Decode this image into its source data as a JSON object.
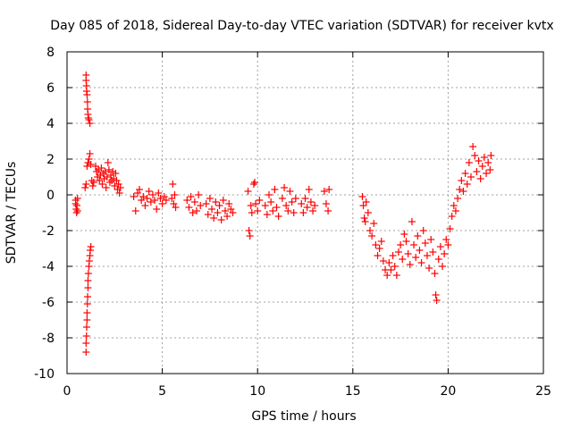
{
  "chart_data": {
    "type": "scatter",
    "title": "Day 085 of 2018, Sidereal Day-to-day VTEC variation (SDTVAR) for receiver kvtx",
    "xlabel": "GPS time / hours",
    "ylabel": "SDTVAR / TECUs",
    "xlim": [
      0,
      25
    ],
    "ylim": [
      -10,
      8
    ],
    "xticks": [
      0,
      5,
      10,
      15,
      20,
      25
    ],
    "yticks": [
      -10,
      -8,
      -6,
      -4,
      -2,
      0,
      2,
      4,
      6,
      8
    ],
    "grid": true,
    "marker": "+",
    "color": "#ff0000",
    "series": [
      {
        "name": "SDTVAR",
        "points": [
          [
            0.45,
            -0.3
          ],
          [
            0.45,
            -0.5
          ],
          [
            0.48,
            -0.8
          ],
          [
            0.5,
            -1.0
          ],
          [
            0.52,
            -0.6
          ],
          [
            0.55,
            -0.2
          ],
          [
            0.55,
            -0.9
          ],
          [
            1.0,
            6.7
          ],
          [
            1.0,
            6.4
          ],
          [
            1.02,
            6.1
          ],
          [
            1.03,
            5.8
          ],
          [
            1.05,
            5.6
          ],
          [
            1.07,
            5.2
          ],
          [
            1.08,
            4.8
          ],
          [
            1.1,
            4.5
          ],
          [
            1.12,
            4.3
          ],
          [
            1.15,
            4.2
          ],
          [
            1.2,
            4.0
          ],
          [
            1.0,
            -8.8
          ],
          [
            1.0,
            -8.3
          ],
          [
            1.02,
            -7.9
          ],
          [
            1.03,
            -7.4
          ],
          [
            1.05,
            -7.0
          ],
          [
            1.05,
            -6.6
          ],
          [
            1.07,
            -6.1
          ],
          [
            1.08,
            -5.7
          ],
          [
            1.1,
            -5.2
          ],
          [
            1.1,
            -4.8
          ],
          [
            1.12,
            -4.4
          ],
          [
            1.15,
            -4.0
          ],
          [
            1.17,
            -3.7
          ],
          [
            1.2,
            -3.4
          ],
          [
            1.22,
            -3.1
          ],
          [
            1.25,
            -2.9
          ],
          [
            0.95,
            0.4
          ],
          [
            1.0,
            0.6
          ],
          [
            1.05,
            1.6
          ],
          [
            1.1,
            1.8
          ],
          [
            1.15,
            2.0
          ],
          [
            1.2,
            2.3
          ],
          [
            1.25,
            1.7
          ],
          [
            1.3,
            0.8
          ],
          [
            1.35,
            0.5
          ],
          [
            1.4,
            0.7
          ],
          [
            1.5,
            1.6
          ],
          [
            1.55,
            1.3
          ],
          [
            1.6,
            1.0
          ],
          [
            1.65,
            1.4
          ],
          [
            1.7,
            0.8
          ],
          [
            1.75,
            1.1
          ],
          [
            1.8,
            1.5
          ],
          [
            1.85,
            0.6
          ],
          [
            1.9,
            1.2
          ],
          [
            1.95,
            0.9
          ],
          [
            2.0,
            1.3
          ],
          [
            2.05,
            0.4
          ],
          [
            2.1,
            1.0
          ],
          [
            2.15,
            1.8
          ],
          [
            2.2,
            1.4
          ],
          [
            2.25,
            0.7
          ],
          [
            2.3,
            1.1
          ],
          [
            2.35,
            0.8
          ],
          [
            2.4,
            1.3
          ],
          [
            2.45,
            0.9
          ],
          [
            2.5,
            0.5
          ],
          [
            2.55,
            1.2
          ],
          [
            2.6,
            0.8
          ],
          [
            2.65,
            0.3
          ],
          [
            2.7,
            0.6
          ],
          [
            2.75,
            0.1
          ],
          [
            2.8,
            0.4
          ],
          [
            3.5,
            -0.1
          ],
          [
            3.6,
            -0.9
          ],
          [
            3.7,
            0.1
          ],
          [
            3.8,
            0.3
          ],
          [
            3.9,
            -0.3
          ],
          [
            4.0,
            -0.1
          ],
          [
            4.1,
            -0.6
          ],
          [
            4.2,
            -0.2
          ],
          [
            4.3,
            0.2
          ],
          [
            4.4,
            -0.4
          ],
          [
            4.5,
            0.0
          ],
          [
            4.6,
            -0.3
          ],
          [
            4.7,
            -0.8
          ],
          [
            4.8,
            0.1
          ],
          [
            4.9,
            -0.2
          ],
          [
            5.0,
            -0.5
          ],
          [
            5.1,
            -0.1
          ],
          [
            5.2,
            -0.3
          ],
          [
            5.5,
            -0.2
          ],
          [
            5.55,
            0.6
          ],
          [
            5.6,
            -0.5
          ],
          [
            5.65,
            0.0
          ],
          [
            5.7,
            -0.7
          ],
          [
            6.3,
            -0.3
          ],
          [
            6.4,
            -0.7
          ],
          [
            6.5,
            -0.1
          ],
          [
            6.6,
            -1.0
          ],
          [
            6.7,
            -0.4
          ],
          [
            6.8,
            -0.9
          ],
          [
            6.9,
            0.0
          ],
          [
            7.0,
            -0.6
          ],
          [
            7.3,
            -0.5
          ],
          [
            7.4,
            -1.1
          ],
          [
            7.5,
            -0.2
          ],
          [
            7.6,
            -0.8
          ],
          [
            7.7,
            -1.3
          ],
          [
            7.8,
            -0.4
          ],
          [
            7.9,
            -1.0
          ],
          [
            8.0,
            -0.6
          ],
          [
            8.1,
            -1.4
          ],
          [
            8.2,
            -0.3
          ],
          [
            8.3,
            -0.9
          ],
          [
            8.4,
            -1.2
          ],
          [
            8.5,
            -0.5
          ],
          [
            8.6,
            -0.8
          ],
          [
            8.7,
            -1.0
          ],
          [
            9.5,
            0.2
          ],
          [
            9.55,
            -2.0
          ],
          [
            9.6,
            -2.3
          ],
          [
            9.65,
            -0.6
          ],
          [
            9.7,
            -1.0
          ],
          [
            9.8,
            0.6
          ],
          [
            9.85,
            0.7
          ],
          [
            9.9,
            -0.5
          ],
          [
            10.0,
            -0.9
          ],
          [
            10.1,
            -0.3
          ],
          [
            10.4,
            -0.6
          ],
          [
            10.5,
            -1.1
          ],
          [
            10.6,
            0.0
          ],
          [
            10.7,
            -0.4
          ],
          [
            10.8,
            -0.9
          ],
          [
            10.9,
            0.3
          ],
          [
            11.0,
            -0.7
          ],
          [
            11.1,
            -1.2
          ],
          [
            11.3,
            -0.2
          ],
          [
            11.4,
            0.4
          ],
          [
            11.5,
            -0.6
          ],
          [
            11.6,
            -0.9
          ],
          [
            11.7,
            0.2
          ],
          [
            11.8,
            -0.4
          ],
          [
            11.9,
            -1.0
          ],
          [
            12.0,
            -0.2
          ],
          [
            12.3,
            -0.5
          ],
          [
            12.4,
            -1.0
          ],
          [
            12.5,
            -0.2
          ],
          [
            12.6,
            -0.7
          ],
          [
            12.7,
            0.3
          ],
          [
            12.8,
            -0.4
          ],
          [
            12.9,
            -0.9
          ],
          [
            13.0,
            -0.6
          ],
          [
            13.5,
            0.2
          ],
          [
            13.6,
            -0.5
          ],
          [
            13.7,
            -0.9
          ],
          [
            13.75,
            0.3
          ],
          [
            15.5,
            -0.1
          ],
          [
            15.55,
            -0.6
          ],
          [
            15.6,
            -1.3
          ],
          [
            15.65,
            -1.5
          ],
          [
            15.7,
            -0.4
          ],
          [
            15.8,
            -1.0
          ],
          [
            15.9,
            -2.0
          ],
          [
            16.0,
            -2.3
          ],
          [
            16.1,
            -1.6
          ],
          [
            16.2,
            -2.8
          ],
          [
            16.3,
            -3.4
          ],
          [
            16.4,
            -3.0
          ],
          [
            16.5,
            -2.6
          ],
          [
            16.6,
            -3.7
          ],
          [
            16.7,
            -4.2
          ],
          [
            16.8,
            -4.5
          ],
          [
            16.9,
            -3.8
          ],
          [
            17.0,
            -4.2
          ],
          [
            17.1,
            -3.4
          ],
          [
            17.2,
            -4.0
          ],
          [
            17.3,
            -4.5
          ],
          [
            17.4,
            -3.2
          ],
          [
            17.5,
            -2.8
          ],
          [
            17.6,
            -3.6
          ],
          [
            17.7,
            -2.2
          ],
          [
            17.8,
            -2.6
          ],
          [
            17.9,
            -3.3
          ],
          [
            18.0,
            -3.9
          ],
          [
            18.1,
            -1.5
          ],
          [
            18.2,
            -2.8
          ],
          [
            18.3,
            -3.5
          ],
          [
            18.4,
            -2.3
          ],
          [
            18.5,
            -3.1
          ],
          [
            18.6,
            -3.8
          ],
          [
            18.7,
            -2.0
          ],
          [
            18.8,
            -2.7
          ],
          [
            18.9,
            -3.4
          ],
          [
            19.0,
            -4.1
          ],
          [
            19.1,
            -2.5
          ],
          [
            19.2,
            -3.2
          ],
          [
            19.3,
            -4.4
          ],
          [
            19.35,
            -5.6
          ],
          [
            19.4,
            -5.9
          ],
          [
            19.5,
            -3.6
          ],
          [
            19.6,
            -2.9
          ],
          [
            19.7,
            -4.0
          ],
          [
            19.8,
            -3.3
          ],
          [
            19.9,
            -2.5
          ],
          [
            20.0,
            -2.8
          ],
          [
            20.1,
            -1.9
          ],
          [
            20.2,
            -1.2
          ],
          [
            20.3,
            -0.6
          ],
          [
            20.4,
            -0.9
          ],
          [
            20.5,
            -0.2
          ],
          [
            20.6,
            0.3
          ],
          [
            20.7,
            0.8
          ],
          [
            20.8,
            0.2
          ],
          [
            20.9,
            1.2
          ],
          [
            21.0,
            0.6
          ],
          [
            21.1,
            1.8
          ],
          [
            21.2,
            1.0
          ],
          [
            21.3,
            2.7
          ],
          [
            21.4,
            2.2
          ],
          [
            21.5,
            1.3
          ],
          [
            21.6,
            1.9
          ],
          [
            21.7,
            0.9
          ],
          [
            21.8,
            1.6
          ],
          [
            21.9,
            2.1
          ],
          [
            22.0,
            1.2
          ],
          [
            22.1,
            1.8
          ],
          [
            22.2,
            1.4
          ],
          [
            22.25,
            2.2
          ]
        ]
      }
    ]
  }
}
